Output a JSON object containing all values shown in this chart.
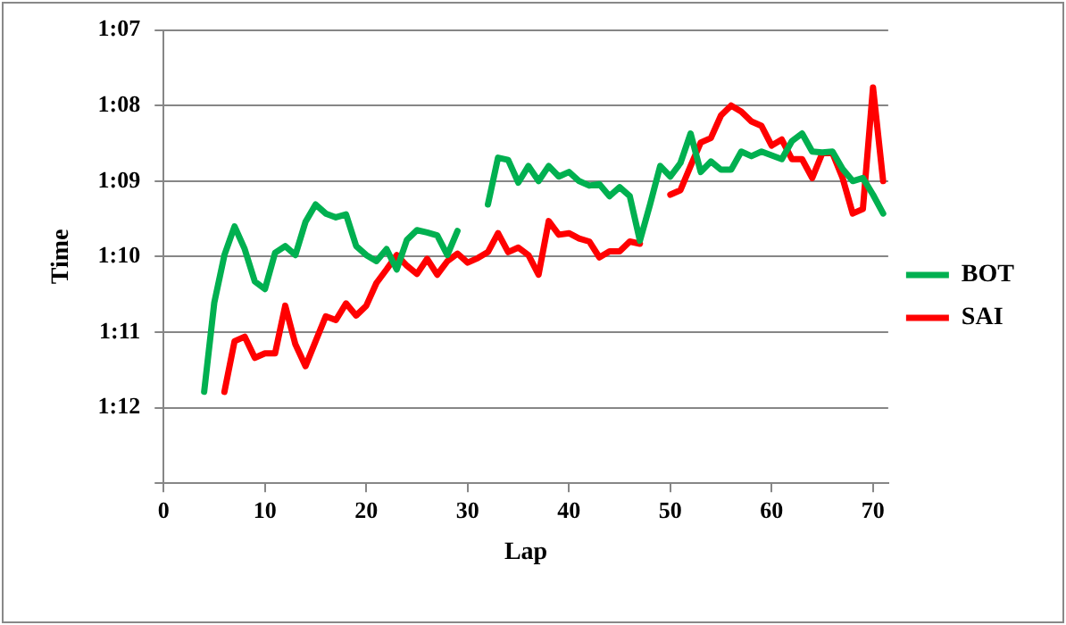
{
  "chart_data": {
    "type": "line",
    "xlabel": "Lap",
    "ylabel": "Time",
    "x": [
      4,
      5,
      6,
      7,
      8,
      9,
      10,
      11,
      12,
      13,
      14,
      15,
      16,
      17,
      18,
      19,
      20,
      21,
      22,
      23,
      24,
      25,
      26,
      27,
      28,
      29,
      30,
      31,
      32,
      33,
      34,
      35,
      36,
      37,
      38,
      39,
      40,
      41,
      42,
      43,
      44,
      45,
      46,
      47,
      48,
      49,
      50,
      51,
      52,
      53,
      54,
      55,
      56,
      57,
      58,
      59,
      60,
      61,
      62,
      63,
      64,
      65,
      66,
      67,
      68,
      69,
      70,
      71
    ],
    "series": [
      {
        "name": "BOT",
        "color": "#00b050",
        "values": [
          71.79,
          70.61,
          69.98,
          69.6,
          69.9,
          70.33,
          70.43,
          69.95,
          69.86,
          69.98,
          69.54,
          69.31,
          69.43,
          69.48,
          69.44,
          69.86,
          69.98,
          70.06,
          69.9,
          70.17,
          69.78,
          69.65,
          69.68,
          69.72,
          69.98,
          69.66,
          null,
          null,
          69.31,
          68.69,
          68.72,
          69.02,
          68.8,
          69.0,
          68.8,
          68.94,
          68.88,
          69.0,
          69.06,
          69.04,
          69.2,
          69.08,
          69.2,
          69.79,
          69.31,
          68.8,
          68.94,
          68.76,
          68.37,
          68.88,
          68.74,
          68.85,
          68.85,
          68.61,
          68.67,
          68.61,
          68.66,
          68.71,
          68.47,
          68.37,
          68.61,
          68.62,
          68.61,
          68.84,
          69.0,
          68.96,
          69.18,
          69.43
        ]
      },
      {
        "name": "SAI",
        "color": "#ff0000",
        "values": [
          null,
          null,
          71.79,
          71.12,
          71.06,
          71.34,
          71.28,
          71.28,
          70.65,
          71.16,
          71.45,
          71.12,
          70.79,
          70.84,
          70.62,
          70.78,
          70.65,
          70.35,
          70.17,
          69.98,
          70.12,
          70.23,
          70.03,
          70.24,
          70.06,
          69.96,
          70.08,
          70.02,
          69.94,
          69.69,
          69.94,
          69.88,
          69.98,
          70.24,
          69.53,
          69.71,
          69.69,
          69.76,
          69.8,
          70.01,
          69.93,
          69.93,
          69.8,
          69.83,
          null,
          null,
          69.18,
          69.12,
          68.8,
          68.49,
          68.43,
          68.13,
          68.0,
          68.08,
          68.21,
          68.27,
          68.53,
          68.45,
          68.71,
          68.71,
          68.96,
          68.63,
          68.63,
          68.96,
          69.43,
          69.37,
          67.76,
          69.0
        ]
      }
    ],
    "xlim": [
      0,
      71.5
    ],
    "xticks": [
      0,
      10,
      20,
      30,
      40,
      50,
      60,
      70
    ],
    "ylim": [
      73,
      67
    ],
    "yticks": [
      {
        "value": 67,
        "label": "1:07"
      },
      {
        "value": 68,
        "label": "1:08"
      },
      {
        "value": 69,
        "label": "1:09"
      },
      {
        "value": 70,
        "label": "1:10"
      },
      {
        "value": 71,
        "label": "1:11"
      },
      {
        "value": 72,
        "label": "1:12"
      },
      {
        "value": 73,
        "label": null
      }
    ],
    "grid": "y",
    "legend": "right",
    "marker": "none",
    "line_style": "solid"
  }
}
